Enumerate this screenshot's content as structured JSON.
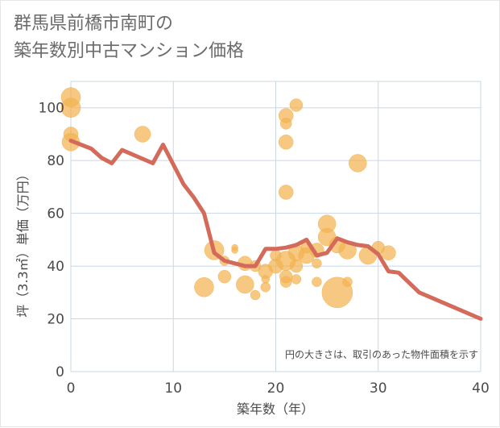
{
  "title_line1": "群馬県前橋市南町の",
  "title_line2": "築年数別中古マンション価格",
  "chart_data": {
    "type": "scatter",
    "title": "群馬県前橋市南町の築年数別中古マンション価格",
    "xlabel": "築年数（年）",
    "ylabel": "坪（3.3㎡）単価（万円）",
    "xlim": [
      0,
      40
    ],
    "ylim": [
      0,
      110
    ],
    "xticks": [
      0,
      10,
      20,
      30,
      40
    ],
    "yticks": [
      0,
      20,
      40,
      60,
      80,
      100
    ],
    "grid": true,
    "note": "円の大きさは、取引のあった物件面積を示す",
    "colors": {
      "bubble": "#f2b350",
      "line": "#d46a5a",
      "grid": "#c8d8e6"
    },
    "bubbles": [
      {
        "x": 0,
        "y": 104,
        "s": 12
      },
      {
        "x": 0,
        "y": 100,
        "s": 12
      },
      {
        "x": 0,
        "y": 90,
        "s": 9
      },
      {
        "x": 0,
        "y": 87,
        "s": 11
      },
      {
        "x": 7,
        "y": 90,
        "s": 10
      },
      {
        "x": 13,
        "y": 32,
        "s": 12
      },
      {
        "x": 14,
        "y": 46,
        "s": 12
      },
      {
        "x": 15,
        "y": 36,
        "s": 8
      },
      {
        "x": 15,
        "y": 42,
        "s": 6
      },
      {
        "x": 16,
        "y": 47,
        "s": 4
      },
      {
        "x": 16,
        "y": 46,
        "s": 4
      },
      {
        "x": 17,
        "y": 33,
        "s": 11
      },
      {
        "x": 17,
        "y": 41,
        "s": 9
      },
      {
        "x": 18,
        "y": 29,
        "s": 6
      },
      {
        "x": 18,
        "y": 40,
        "s": 7
      },
      {
        "x": 19,
        "y": 32,
        "s": 6
      },
      {
        "x": 19,
        "y": 35,
        "s": 5
      },
      {
        "x": 19,
        "y": 38,
        "s": 9
      },
      {
        "x": 20,
        "y": 40,
        "s": 9
      },
      {
        "x": 20,
        "y": 44,
        "s": 7
      },
      {
        "x": 21,
        "y": 97,
        "s": 9
      },
      {
        "x": 21,
        "y": 94,
        "s": 7
      },
      {
        "x": 21,
        "y": 87,
        "s": 9
      },
      {
        "x": 21,
        "y": 68,
        "s": 9
      },
      {
        "x": 21,
        "y": 42,
        "s": 12
      },
      {
        "x": 21,
        "y": 36,
        "s": 8
      },
      {
        "x": 21,
        "y": 34,
        "s": 7
      },
      {
        "x": 22,
        "y": 101,
        "s": 8
      },
      {
        "x": 22,
        "y": 45,
        "s": 10
      },
      {
        "x": 22,
        "y": 40,
        "s": 8
      },
      {
        "x": 22,
        "y": 35,
        "s": 6
      },
      {
        "x": 23,
        "y": 44,
        "s": 10
      },
      {
        "x": 23,
        "y": 47,
        "s": 7
      },
      {
        "x": 24,
        "y": 46,
        "s": 9
      },
      {
        "x": 24,
        "y": 41,
        "s": 6
      },
      {
        "x": 24,
        "y": 34,
        "s": 6
      },
      {
        "x": 25,
        "y": 56,
        "s": 11
      },
      {
        "x": 25,
        "y": 51,
        "s": 11
      },
      {
        "x": 26,
        "y": 48,
        "s": 10
      },
      {
        "x": 26,
        "y": 30,
        "s": 19
      },
      {
        "x": 27,
        "y": 46,
        "s": 11
      },
      {
        "x": 27,
        "y": 34,
        "s": 6
      },
      {
        "x": 28,
        "y": 79,
        "s": 11
      },
      {
        "x": 29,
        "y": 44,
        "s": 11
      },
      {
        "x": 30,
        "y": 47,
        "s": 8
      },
      {
        "x": 31,
        "y": 45,
        "s": 9
      }
    ],
    "line": {
      "x": [
        0,
        2,
        3,
        4,
        5,
        8,
        9,
        10,
        11,
        12,
        13,
        14,
        15,
        16,
        17,
        18,
        19,
        20,
        21,
        22,
        23,
        24,
        25,
        26,
        27,
        28,
        29,
        30,
        31,
        32,
        34,
        40
      ],
      "y": [
        87.5,
        84.5,
        81,
        79,
        84,
        79,
        86,
        78.5,
        71,
        66,
        60,
        45,
        42,
        41,
        40,
        40,
        46.5,
        46.5,
        47,
        48,
        50,
        44,
        45,
        50.5,
        49,
        48,
        47.5,
        44.5,
        38,
        37.5,
        30,
        20
      ]
    }
  }
}
